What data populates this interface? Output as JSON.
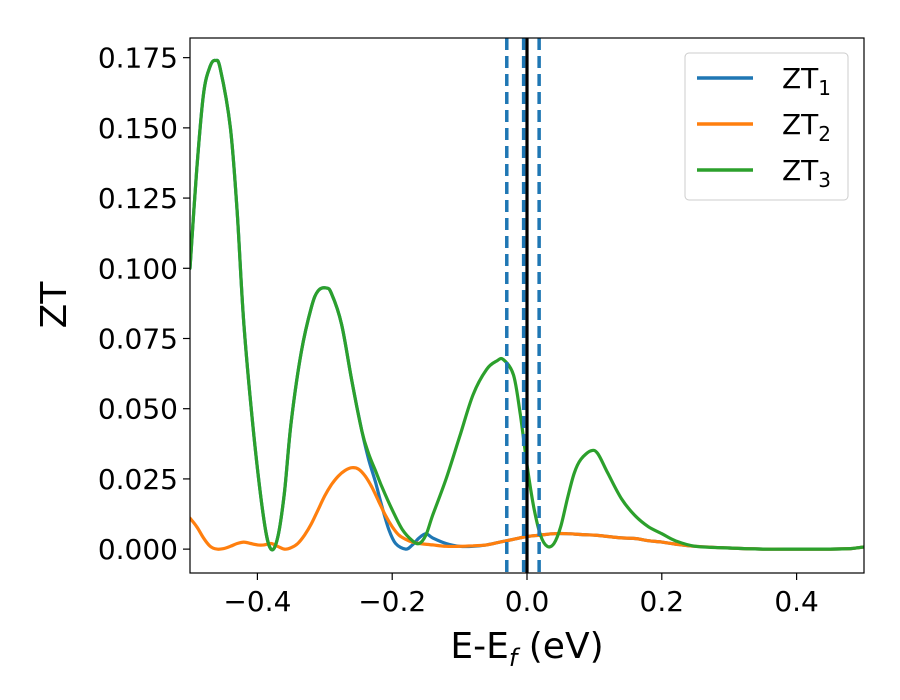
{
  "chart_data": {
    "type": "line",
    "xlabel": "E-E",
    "xlabel_sub": "f",
    "xlabel_unit": " (eV)",
    "ylabel": "ZT",
    "xlim": [
      -0.5,
      0.5
    ],
    "ylim": [
      -0.0085,
      0.182
    ],
    "x_ticks": [
      -0.4,
      -0.2,
      0.0,
      0.2,
      0.4
    ],
    "x_tick_labels": [
      "−0.4",
      "−0.2",
      "0.0",
      "0.2",
      "0.4"
    ],
    "y_ticks": [
      0.0,
      0.025,
      0.05,
      0.075,
      0.1,
      0.125,
      0.15,
      0.175
    ],
    "y_tick_labels": [
      "0.000",
      "0.025",
      "0.050",
      "0.075",
      "0.100",
      "0.125",
      "0.150",
      "0.175"
    ],
    "grid": false,
    "legend_position": "upper right",
    "vertical_lines": [
      {
        "x": -0.03,
        "style": "dashed",
        "color": "#1f77b4"
      },
      {
        "x": -0.005,
        "style": "dashed",
        "color": "#1f77b4"
      },
      {
        "x": 0.018,
        "style": "dashed",
        "color": "#1f77b4"
      },
      {
        "x": 0.0,
        "style": "solid",
        "color": "#000000"
      }
    ],
    "series": [
      {
        "name": "ZT",
        "name_sub": "1",
        "color": "#1f77b4",
        "points": [
          [
            -0.5,
            0.1
          ],
          [
            -0.49,
            0.135
          ],
          [
            -0.48,
            0.162
          ],
          [
            -0.47,
            0.172
          ],
          [
            -0.462,
            0.174
          ],
          [
            -0.455,
            0.171
          ],
          [
            -0.44,
            0.15
          ],
          [
            -0.43,
            0.12
          ],
          [
            -0.42,
            0.08
          ],
          [
            -0.405,
            0.04
          ],
          [
            -0.39,
            0.01
          ],
          [
            -0.38,
            0.0
          ],
          [
            -0.37,
            0.004
          ],
          [
            -0.36,
            0.02
          ],
          [
            -0.35,
            0.045
          ],
          [
            -0.335,
            0.07
          ],
          [
            -0.32,
            0.086
          ],
          [
            -0.31,
            0.092
          ],
          [
            -0.298,
            0.093
          ],
          [
            -0.29,
            0.091
          ],
          [
            -0.275,
            0.08
          ],
          [
            -0.26,
            0.06
          ],
          [
            -0.245,
            0.042
          ],
          [
            -0.235,
            0.032
          ],
          [
            -0.225,
            0.024
          ],
          [
            -0.215,
            0.015
          ],
          [
            -0.205,
            0.007
          ],
          [
            -0.195,
            0.002
          ],
          [
            -0.18,
            0.0
          ],
          [
            -0.17,
            0.0015
          ],
          [
            -0.16,
            0.004
          ],
          [
            -0.15,
            0.0055
          ],
          [
            -0.14,
            0.004
          ],
          [
            -0.12,
            0.002
          ],
          [
            -0.1,
            0.001
          ],
          [
            -0.08,
            0.001
          ],
          [
            -0.06,
            0.0015
          ],
          [
            -0.04,
            0.0025
          ],
          [
            -0.02,
            0.0035
          ],
          [
            0.0,
            0.0045
          ],
          [
            0.02,
            0.005
          ],
          [
            0.04,
            0.0055
          ],
          [
            0.06,
            0.0055
          ],
          [
            0.08,
            0.0052
          ],
          [
            0.1,
            0.005
          ],
          [
            0.12,
            0.0045
          ],
          [
            0.14,
            0.004
          ],
          [
            0.16,
            0.0038
          ],
          [
            0.18,
            0.003
          ],
          [
            0.2,
            0.0025
          ],
          [
            0.22,
            0.0018
          ],
          [
            0.25,
            0.001
          ],
          [
            0.3,
            0.0004
          ],
          [
            0.35,
            0.0
          ],
          [
            0.4,
            0.0
          ],
          [
            0.45,
            0.0
          ],
          [
            0.48,
            0.0002
          ],
          [
            0.5,
            0.0008
          ]
        ]
      },
      {
        "name": "ZT",
        "name_sub": "2",
        "color": "#ff7f0e",
        "points": [
          [
            -0.5,
            0.011
          ],
          [
            -0.49,
            0.008
          ],
          [
            -0.48,
            0.004
          ],
          [
            -0.47,
            0.001
          ],
          [
            -0.46,
            0.0
          ],
          [
            -0.45,
            0.0002
          ],
          [
            -0.44,
            0.001
          ],
          [
            -0.43,
            0.002
          ],
          [
            -0.42,
            0.0025
          ],
          [
            -0.41,
            0.002
          ],
          [
            -0.4,
            0.0015
          ],
          [
            -0.39,
            0.0015
          ],
          [
            -0.38,
            0.002
          ],
          [
            -0.37,
            0.001
          ],
          [
            -0.36,
            0.0
          ],
          [
            -0.35,
            0.0005
          ],
          [
            -0.34,
            0.002
          ],
          [
            -0.33,
            0.005
          ],
          [
            -0.32,
            0.009
          ],
          [
            -0.31,
            0.014
          ],
          [
            -0.3,
            0.019
          ],
          [
            -0.29,
            0.023
          ],
          [
            -0.28,
            0.026
          ],
          [
            -0.27,
            0.028
          ],
          [
            -0.26,
            0.029
          ],
          [
            -0.25,
            0.0285
          ],
          [
            -0.24,
            0.026
          ],
          [
            -0.23,
            0.022
          ],
          [
            -0.22,
            0.017
          ],
          [
            -0.21,
            0.012
          ],
          [
            -0.2,
            0.008
          ],
          [
            -0.19,
            0.005
          ],
          [
            -0.18,
            0.0035
          ],
          [
            -0.17,
            0.0025
          ],
          [
            -0.16,
            0.002
          ],
          [
            -0.14,
            0.0015
          ],
          [
            -0.12,
            0.001
          ],
          [
            -0.1,
            0.001
          ],
          [
            -0.08,
            0.0012
          ],
          [
            -0.06,
            0.0015
          ],
          [
            -0.04,
            0.0025
          ],
          [
            -0.02,
            0.0035
          ],
          [
            0.0,
            0.0045
          ],
          [
            0.02,
            0.005
          ],
          [
            0.04,
            0.0055
          ],
          [
            0.06,
            0.0055
          ],
          [
            0.08,
            0.0052
          ],
          [
            0.1,
            0.005
          ],
          [
            0.12,
            0.0045
          ],
          [
            0.14,
            0.004
          ],
          [
            0.16,
            0.0038
          ],
          [
            0.18,
            0.003
          ],
          [
            0.2,
            0.0025
          ],
          [
            0.22,
            0.0018
          ],
          [
            0.25,
            0.001
          ],
          [
            0.3,
            0.0004
          ],
          [
            0.35,
            0.0
          ],
          [
            0.4,
            0.0
          ],
          [
            0.45,
            0.0
          ],
          [
            0.48,
            0.0002
          ],
          [
            0.5,
            0.0008
          ]
        ]
      },
      {
        "name": "ZT",
        "name_sub": "3",
        "color": "#2ca02c",
        "points": [
          [
            -0.5,
            0.1
          ],
          [
            -0.49,
            0.135
          ],
          [
            -0.48,
            0.162
          ],
          [
            -0.47,
            0.172
          ],
          [
            -0.462,
            0.174
          ],
          [
            -0.455,
            0.171
          ],
          [
            -0.44,
            0.15
          ],
          [
            -0.43,
            0.12
          ],
          [
            -0.42,
            0.08
          ],
          [
            -0.405,
            0.04
          ],
          [
            -0.39,
            0.01
          ],
          [
            -0.38,
            0.0
          ],
          [
            -0.37,
            0.004
          ],
          [
            -0.36,
            0.02
          ],
          [
            -0.35,
            0.045
          ],
          [
            -0.335,
            0.07
          ],
          [
            -0.32,
            0.086
          ],
          [
            -0.31,
            0.092
          ],
          [
            -0.298,
            0.093
          ],
          [
            -0.29,
            0.091
          ],
          [
            -0.275,
            0.08
          ],
          [
            -0.26,
            0.06
          ],
          [
            -0.245,
            0.042
          ],
          [
            -0.235,
            0.034
          ],
          [
            -0.225,
            0.028
          ],
          [
            -0.215,
            0.022
          ],
          [
            -0.2,
            0.014
          ],
          [
            -0.185,
            0.007
          ],
          [
            -0.17,
            0.003
          ],
          [
            -0.16,
            0.002
          ],
          [
            -0.15,
            0.005
          ],
          [
            -0.14,
            0.012
          ],
          [
            -0.12,
            0.025
          ],
          [
            -0.1,
            0.04
          ],
          [
            -0.08,
            0.055
          ],
          [
            -0.06,
            0.064
          ],
          [
            -0.045,
            0.067
          ],
          [
            -0.035,
            0.0675
          ],
          [
            -0.02,
            0.062
          ],
          [
            -0.01,
            0.048
          ],
          [
            0.0,
            0.03
          ],
          [
            0.01,
            0.015
          ],
          [
            0.02,
            0.005
          ],
          [
            0.03,
            0.001
          ],
          [
            0.04,
            0.002
          ],
          [
            0.05,
            0.008
          ],
          [
            0.06,
            0.018
          ],
          [
            0.07,
            0.027
          ],
          [
            0.08,
            0.032
          ],
          [
            0.095,
            0.035
          ],
          [
            0.105,
            0.034
          ],
          [
            0.12,
            0.027
          ],
          [
            0.14,
            0.018
          ],
          [
            0.16,
            0.012
          ],
          [
            0.18,
            0.008
          ],
          [
            0.2,
            0.0055
          ],
          [
            0.22,
            0.003
          ],
          [
            0.25,
            0.001
          ],
          [
            0.3,
            0.0004
          ],
          [
            0.35,
            0.0
          ],
          [
            0.4,
            0.0
          ],
          [
            0.45,
            0.0
          ],
          [
            0.48,
            0.0002
          ],
          [
            0.5,
            0.0008
          ]
        ]
      }
    ]
  }
}
